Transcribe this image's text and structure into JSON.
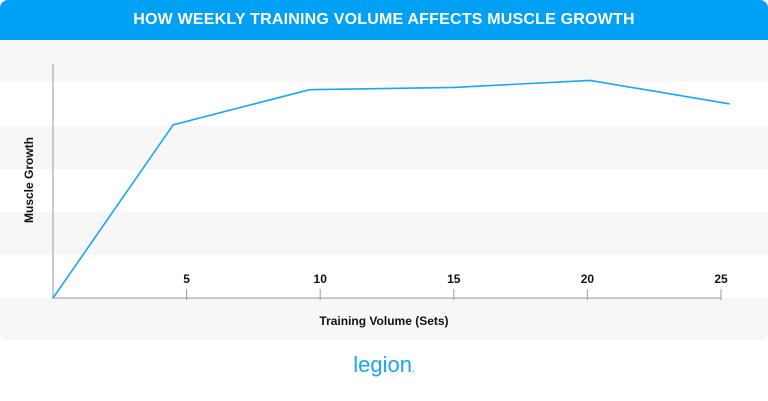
{
  "chart_data": {
    "type": "line",
    "title": "HOW WEEKLY TRAINING VOLUME AFFECTS MUSCLE GROWTH",
    "xlabel": "Training Volume (Sets)",
    "ylabel": "Muscle Growth",
    "x_ticks": [
      5,
      10,
      15,
      20,
      25
    ],
    "xlim": [
      0,
      25
    ],
    "ylim": [
      0,
      1
    ],
    "y_ticks_shown": false,
    "grid": "horizontal alternating bands",
    "line_color": "#1aa6f0",
    "points": [
      {
        "x": 0,
        "y": 0
      },
      {
        "x": 4.5,
        "y": 0.74
      },
      {
        "x": 9.6,
        "y": 0.89
      },
      {
        "x": 15,
        "y": 0.9
      },
      {
        "x": 20.1,
        "y": 0.93
      },
      {
        "x": 25.3,
        "y": 0.83
      }
    ]
  },
  "colors": {
    "header": "#00a0f5",
    "band": "#f7f7f7",
    "brand": "#1aa6f0"
  },
  "brand": {
    "logo_text": "legion"
  }
}
